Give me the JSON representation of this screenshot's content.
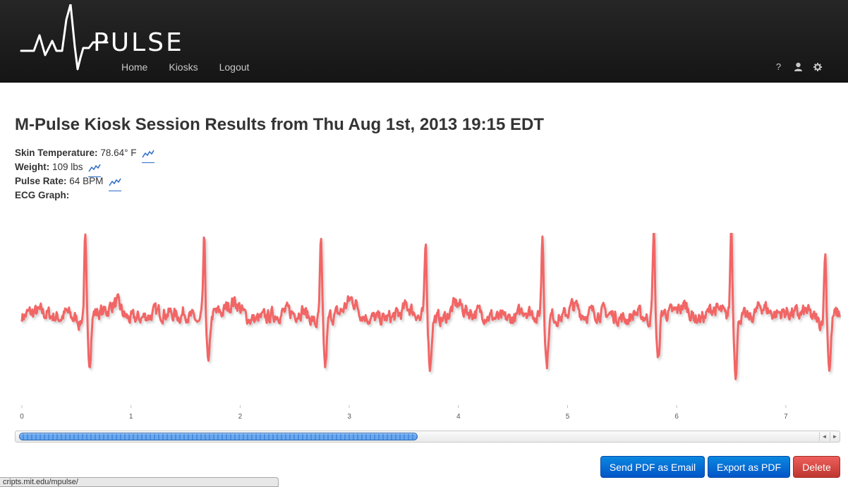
{
  "brand": {
    "logo_text": "PULSE"
  },
  "nav": {
    "items": [
      "Home",
      "Kiosks",
      "Logout"
    ],
    "right_icons": [
      "?",
      "user-icon",
      "gear-icon"
    ]
  },
  "page": {
    "title": "M-Pulse Kiosk Session Results from Thu Aug 1st, 2013 19:15 EDT"
  },
  "stats": [
    {
      "label": "Skin Temperature:",
      "value": "78.64° F",
      "has_trend": true
    },
    {
      "label": "Weight:",
      "value": "109 lbs",
      "has_trend": true
    },
    {
      "label": "Pulse Rate:",
      "value": "64 BPM",
      "has_trend": true
    },
    {
      "label": "ECG Graph:",
      "value": "",
      "has_trend": false
    }
  ],
  "chart_data": {
    "type": "line",
    "title": "",
    "xlabel": "",
    "ylabel": "",
    "x_ticks": [
      0,
      1,
      2,
      3,
      4,
      5,
      6,
      7
    ],
    "x_tick_labels": [
      "0",
      "1",
      "2",
      "3",
      "4",
      "5",
      "6",
      "7"
    ],
    "xlim": [
      0,
      7.5
    ],
    "ylim": [
      -1,
      1
    ],
    "grid": false,
    "line_color": "#f26565",
    "baseline": 0,
    "r_peak_times": [
      0.58,
      1.67,
      2.74,
      3.7,
      4.77,
      5.79,
      6.5,
      7.36
    ],
    "r_peak_heights": [
      0.82,
      0.82,
      0.82,
      0.77,
      0.88,
      0.92,
      0.96,
      0.74
    ],
    "s_trough_depths": [
      -0.6,
      -0.62,
      -0.62,
      -0.62,
      -0.62,
      -0.62,
      -0.7,
      -0.64
    ]
  },
  "scrollbar": {
    "position_fraction": 0.0,
    "visible_fraction": 0.49
  },
  "actions": {
    "email_label": "Send PDF as Email",
    "export_label": "Export as PDF",
    "delete_label": "Delete"
  },
  "status_bar": {
    "url": "cripts.mit.edu/mpulse/"
  },
  "colors": {
    "primary": "#0a6fd6",
    "danger": "#d9534f",
    "ecg": "#f26565",
    "navbar": "#1c1c1c"
  }
}
